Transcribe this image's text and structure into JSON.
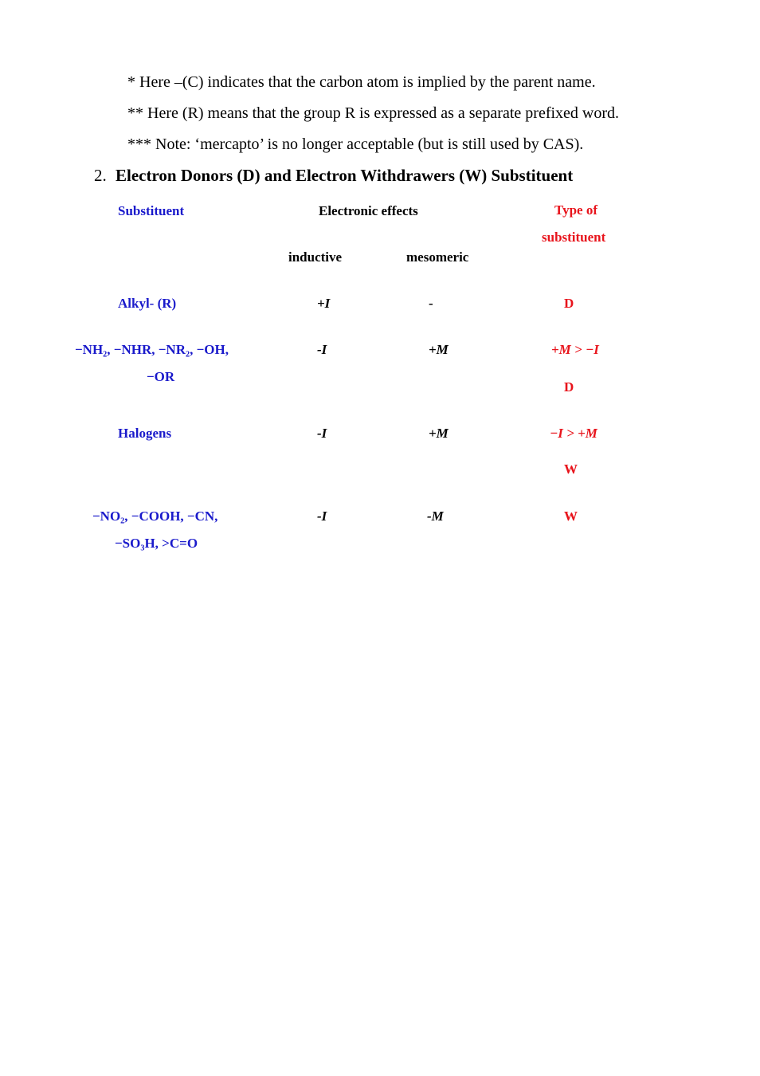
{
  "notes": [
    "* Here –(C) indicates that the carbon atom is implied by the parent name.",
    "** Here (R) means that the group R is expressed as a separate prefixed word.",
    "*** Note: ‘mercapto’ is no longer acceptable (but is still used by CAS)."
  ],
  "section": {
    "number": "2.",
    "title": "Electron Donors (D) and Electron Withdrawers (W) Substituent"
  },
  "table": {
    "headers": {
      "substituent": "Substituent",
      "electronic_effects": "Electronic effects",
      "type_line1": "Type of",
      "type_line2": "substituent",
      "inductive": "inductive",
      "mesomeric": "mesomeric"
    },
    "rows": [
      {
        "substituent_line1": "Alkyl- (R)",
        "substituent_line2": "",
        "inductive": "+I",
        "mesomeric": "-",
        "type_line1": "D",
        "type_line2": ""
      },
      {
        "substituent_line1": "−NH₂, −NHR, −NR₂, −OH,",
        "substituent_line2": "−OR",
        "inductive": "-I",
        "mesomeric": "+M",
        "type_line1": "+M > −I",
        "type_line2": "D"
      },
      {
        "substituent_line1": "Halogens",
        "substituent_line2": "",
        "inductive": "-I",
        "mesomeric": "+M",
        "type_line1": "−I > +M",
        "type_line2": "W"
      },
      {
        "substituent_line1": "−NO₂, −COOH, −CN,",
        "substituent_line2": "−SO₃H, >C=O",
        "inductive": "-I",
        "mesomeric": "-M",
        "type_line1": "W",
        "type_line2": ""
      }
    ]
  },
  "colors": {
    "substituent_text": "#1a1acb",
    "type_text": "#e8141c"
  }
}
